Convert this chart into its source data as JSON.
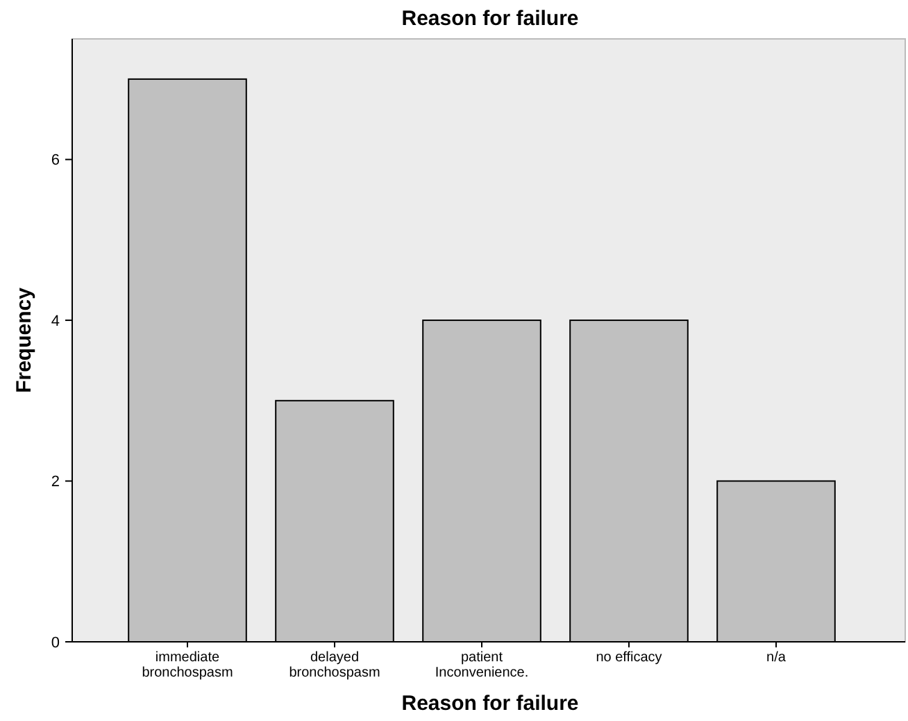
{
  "chart_data": {
    "type": "bar",
    "title": "Reason for failure",
    "xlabel": "Reason for failure",
    "ylabel": "Frequency",
    "categories": [
      "immediate\nbronchospasm",
      "delayed\nbronchospasm",
      "patient\nInconvenience.",
      "no efficacy",
      "n/a"
    ],
    "values": [
      7,
      3,
      4,
      4,
      2
    ],
    "color": "#c0c0c0",
    "ylim": [
      0,
      7.5
    ],
    "yticks": [
      0,
      2,
      4,
      6
    ],
    "grid": false
  }
}
